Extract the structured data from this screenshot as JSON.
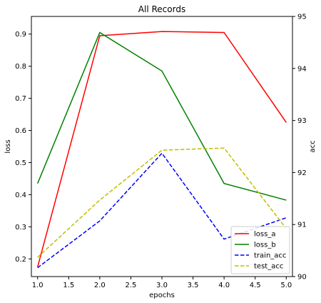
{
  "chart_data": {
    "type": "line",
    "title": "All Records",
    "xlabel": "epochs",
    "ylabel_left": "loss",
    "ylabel_right": "acc",
    "xlim": [
      0.9,
      5.1
    ],
    "ylim_left": [
      0.145,
      0.955
    ],
    "ylim_right": [
      90.0,
      95.0
    ],
    "x_ticks": [
      1.0,
      1.5,
      2.0,
      2.5,
      3.0,
      3.5,
      4.0,
      4.5,
      5.0
    ],
    "x_tick_labels": [
      "1.0",
      "1.5",
      "2.0",
      "2.5",
      "3.0",
      "3.5",
      "4.0",
      "4.5",
      "5.0"
    ],
    "y_left_ticks": [
      0.2,
      0.3,
      0.4,
      0.5,
      0.6,
      0.7,
      0.8,
      0.9
    ],
    "y_left_tick_labels": [
      "0.2",
      "0.3",
      "0.4",
      "0.5",
      "0.6",
      "0.7",
      "0.8",
      "0.9"
    ],
    "y_right_ticks": [
      90,
      91,
      92,
      93,
      94,
      95
    ],
    "y_right_tick_labels": [
      "90",
      "91",
      "92",
      "93",
      "94",
      "95"
    ],
    "x": [
      1,
      2,
      3,
      4,
      5
    ],
    "series": [
      {
        "name": "loss_a",
        "axis": "left",
        "color": "#ff0000",
        "style": "solid",
        "values": [
          0.175,
          0.895,
          0.908,
          0.905,
          0.625
        ]
      },
      {
        "name": "loss_b",
        "axis": "left",
        "color": "#008000",
        "style": "solid",
        "values": [
          0.435,
          0.905,
          0.785,
          0.435,
          0.383
        ]
      },
      {
        "name": "train_acc",
        "axis": "right",
        "color": "#0000ff",
        "style": "dashed",
        "values": [
          90.17,
          91.07,
          92.37,
          90.72,
          91.13
        ]
      },
      {
        "name": "test_acc",
        "axis": "right",
        "color": "#bfbf00",
        "style": "dashed",
        "values": [
          90.37,
          91.47,
          92.43,
          92.47,
          90.92
        ]
      }
    ],
    "grid": false,
    "legend_position": "lower-right"
  }
}
